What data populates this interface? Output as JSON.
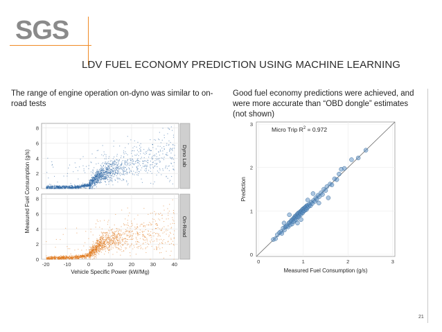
{
  "slide": {
    "logo_text": "SGS",
    "title": "LDV FUEL ECONOMY PREDICTION USING MACHINE LEARNING",
    "left_caption": "The range of engine operation on-dyno was similar to on-road tests",
    "right_caption": "Good fuel economy predictions were achieved, and were more accurate than “OBD dongle” estimates (not shown)",
    "page_number": "21"
  },
  "colors": {
    "accent": "#f08a24",
    "logo_gray": "#8a8a8a",
    "dyno_blue": "#2460a0",
    "road_orange": "#e0781c",
    "pred_blue": "#5b8fc4"
  },
  "chart_data": [
    {
      "type": "scatter",
      "title": "",
      "xlabel": "Vehicle Specific Power (kW/Mg)",
      "ylabel": "Measured Fuel Consumption (g/s)",
      "xlim": [
        -22,
        42
      ],
      "ylim": [
        0,
        8.6
      ],
      "x_ticks": [
        -20,
        -10,
        0,
        10,
        20,
        30,
        40
      ],
      "y_ticks": [
        0,
        2,
        4,
        6,
        8
      ],
      "grid": true,
      "facets": [
        "Dyno Lab",
        "On-Road"
      ],
      "series": [
        {
          "name": "Dyno Lab",
          "color": "#2460a0",
          "trend": {
            "x": [
              -20,
              -5,
              0,
              5,
              10,
              20,
              30,
              40
            ],
            "y": [
              0.2,
              0.25,
              0.5,
              1.8,
              2.4,
              3.2,
              4.0,
              4.6
            ]
          }
        },
        {
          "name": "On-Road",
          "color": "#e0781c",
          "trend": {
            "x": [
              -20,
              -5,
              0,
              5,
              10,
              20,
              30,
              40
            ],
            "y": [
              0.2,
              0.3,
              0.6,
              2.0,
              2.6,
              3.0,
              3.5,
              4.0
            ]
          }
        }
      ]
    },
    {
      "type": "scatter",
      "title": "",
      "annotation": "Micro Trip R",
      "annotation_sup": "2",
      "annotation_value": " = 0.972",
      "xlabel": "Measured Fuel Consumption (g/s)",
      "ylabel": "Prediction",
      "xlim": [
        -0.05,
        3.05
      ],
      "ylim": [
        -0.05,
        3.05
      ],
      "x_ticks": [
        0,
        1,
        2,
        3
      ],
      "y_ticks": [
        0,
        1,
        2,
        3
      ],
      "reference_line": "y = x",
      "grid": true,
      "points": [
        [
          0.33,
          0.34
        ],
        [
          0.38,
          0.36
        ],
        [
          0.42,
          0.45
        ],
        [
          0.47,
          0.5
        ],
        [
          0.5,
          0.52
        ],
        [
          0.52,
          0.48
        ],
        [
          0.55,
          0.6
        ],
        [
          0.58,
          0.56
        ],
        [
          0.6,
          0.63
        ],
        [
          0.62,
          0.64
        ],
        [
          0.64,
          0.66
        ],
        [
          0.66,
          0.63
        ],
        [
          0.68,
          0.72
        ],
        [
          0.7,
          0.74
        ],
        [
          0.71,
          0.68
        ],
        [
          0.73,
          0.76
        ],
        [
          0.74,
          0.79
        ],
        [
          0.75,
          0.7
        ],
        [
          0.77,
          0.81
        ],
        [
          0.78,
          0.75
        ],
        [
          0.79,
          0.83
        ],
        [
          0.8,
          0.85
        ],
        [
          0.81,
          0.78
        ],
        [
          0.82,
          0.88
        ],
        [
          0.83,
          0.84
        ],
        [
          0.84,
          0.8
        ],
        [
          0.85,
          0.9
        ],
        [
          0.86,
          0.87
        ],
        [
          0.87,
          0.93
        ],
        [
          0.88,
          0.86
        ],
        [
          0.89,
          0.95
        ],
        [
          0.9,
          0.91
        ],
        [
          0.91,
          0.88
        ],
        [
          0.92,
          0.97
        ],
        [
          0.93,
          0.94
        ],
        [
          0.94,
          0.99
        ],
        [
          0.95,
          0.92
        ],
        [
          0.96,
          1.0
        ],
        [
          0.97,
          0.97
        ],
        [
          0.98,
          1.03
        ],
        [
          0.99,
          0.96
        ],
        [
          1.0,
          1.05
        ],
        [
          1.01,
          1.0
        ],
        [
          1.02,
          1.06
        ],
        [
          1.03,
          1.01
        ],
        [
          1.04,
          1.08
        ],
        [
          1.05,
          1.04
        ],
        [
          1.06,
          1.1
        ],
        [
          1.07,
          1.03
        ],
        [
          1.08,
          1.12
        ],
        [
          1.09,
          1.07
        ],
        [
          1.1,
          1.13
        ],
        [
          1.12,
          1.1
        ],
        [
          1.14,
          1.15
        ],
        [
          1.16,
          1.12
        ],
        [
          1.18,
          1.2
        ],
        [
          1.2,
          1.17
        ],
        [
          1.23,
          1.24
        ],
        [
          1.26,
          1.22
        ],
        [
          1.28,
          1.3
        ],
        [
          1.3,
          1.27
        ],
        [
          1.33,
          1.36
        ],
        [
          1.36,
          1.33
        ],
        [
          1.4,
          1.42
        ],
        [
          1.43,
          1.38
        ],
        [
          1.46,
          1.5
        ],
        [
          1.5,
          1.47
        ],
        [
          1.53,
          1.56
        ],
        [
          1.56,
          1.3
        ],
        [
          1.6,
          1.62
        ],
        [
          1.64,
          1.6
        ],
        [
          1.7,
          1.74
        ],
        [
          1.75,
          1.72
        ],
        [
          1.8,
          1.85
        ],
        [
          1.85,
          1.96
        ],
        [
          1.92,
          1.98
        ],
        [
          2.08,
          2.18
        ],
        [
          2.23,
          2.22
        ],
        [
          2.4,
          2.4
        ],
        [
          0.69,
          0.91
        ],
        [
          0.87,
          0.72
        ],
        [
          1.1,
          1.25
        ],
        [
          1.35,
          1.18
        ],
        [
          0.57,
          0.72
        ],
        [
          1.22,
          1.4
        ],
        [
          0.95,
          0.8
        ]
      ]
    }
  ]
}
